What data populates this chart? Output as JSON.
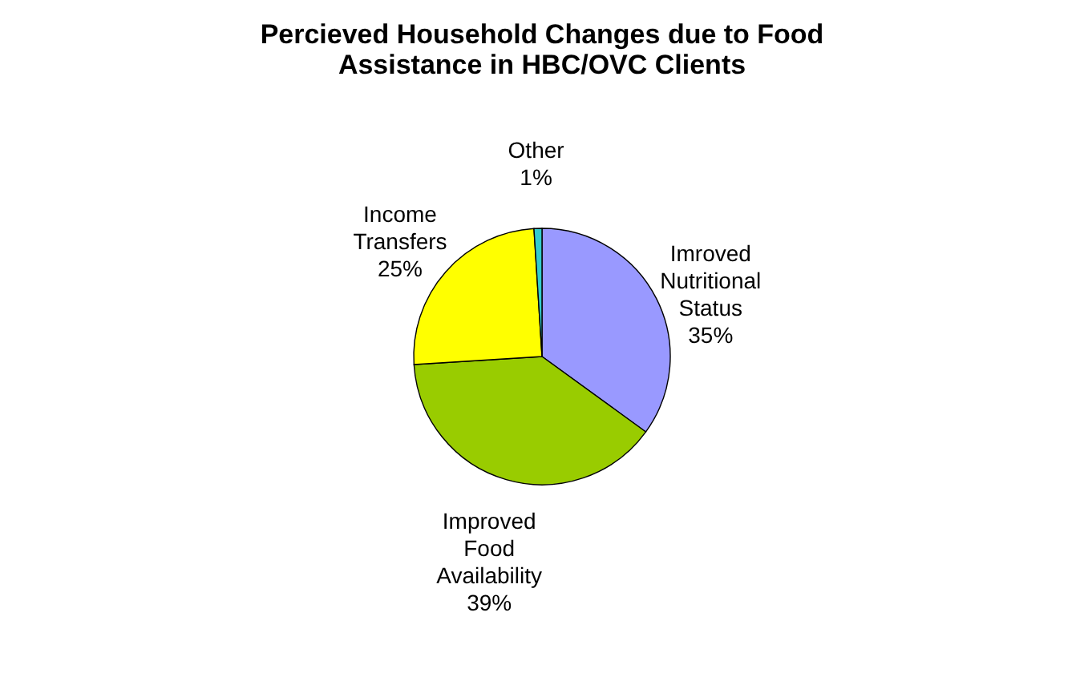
{
  "chart_data": {
    "type": "pie",
    "title": "Percieved Household Changes due to Food Assistance in HBC/OVC Clients",
    "categories": [
      "Imroved Nutritional Status",
      "Improved Food Availability",
      "Income Transfers",
      "Other"
    ],
    "values": [
      35,
      39,
      25,
      1
    ],
    "value_labels": [
      "35%",
      "39%",
      "25%",
      "1%"
    ],
    "colors": [
      "#9999ff",
      "#99cc00",
      "#ffff00",
      "#33cccc"
    ],
    "legend": false
  }
}
